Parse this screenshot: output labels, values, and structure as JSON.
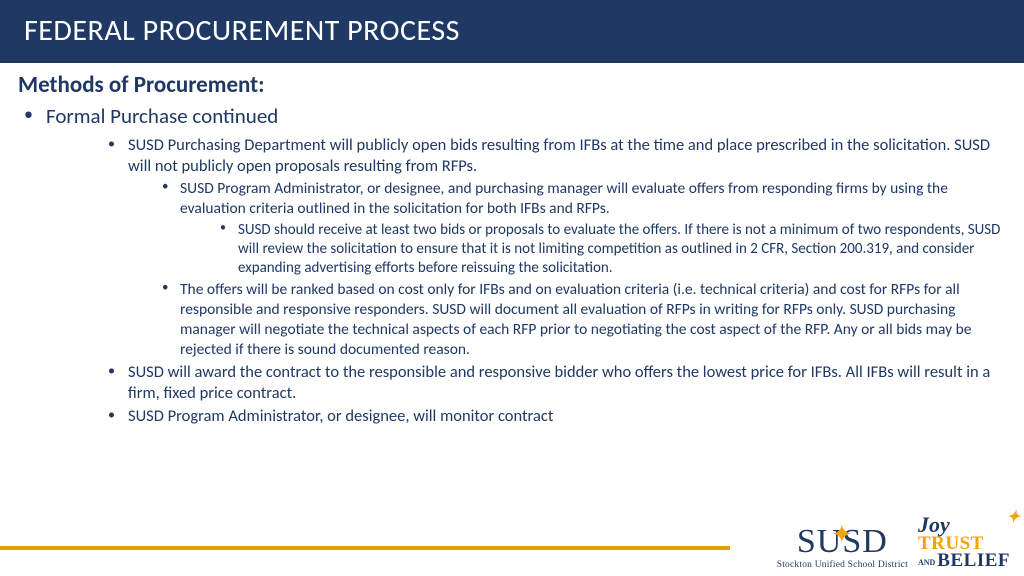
{
  "header": {
    "title": "FEDERAL PROCUREMENT PROCESS"
  },
  "subtitle": "Methods of Procurement:",
  "bullets": {
    "l1": "Formal Purchase continued",
    "l2a": "SUSD Purchasing Department will publicly open bids resulting from IFBs at the time and place prescribed in the solicitation. SUSD will not publicly open proposals resulting from RFPs.",
    "l3a": "SUSD Program Administrator, or designee, and purchasing manager will evaluate offers from responding firms by using the evaluation criteria outlined in the solicitation for both IFBs and RFPs.",
    "l4a": "SUSD should receive at least two bids or proposals to evaluate the offers. If there is not a minimum of two respondents, SUSD will review the solicitation to ensure that it is not limiting competition as outlined in 2 CFR, Section 200.319, and consider expanding advertising efforts before reissuing the solicitation.",
    "l3b": "The offers will be ranked based on cost only for IFBs and on evaluation criteria (i.e. technical criteria) and cost for RFPs for all responsible and responsive responders. SUSD will document all evaluation of RFPs in writing for RFPs only. SUSD purchasing manager will negotiate the technical aspects of each RFP prior to negotiating the cost aspect of the RFP. Any or all bids may be rejected if there is sound documented reason.",
    "l2b": "SUSD will award the contract to the responsible and responsive bidder who offers the lowest price for IFBs. All IFBs will result in a firm, fixed price contract.",
    "l2c": "SUSD Program Administrator, or designee, will monitor contract"
  },
  "logo": {
    "susd": "SUSD",
    "district": "Stockton Unified School District",
    "joy": "Joy",
    "trust": "TRUST",
    "and": "AND",
    "belief": "BELIEF"
  },
  "colors": {
    "navy": "#1f3864",
    "gold": "#e2a100",
    "orange": "#f4a300",
    "white": "#ffffff"
  }
}
